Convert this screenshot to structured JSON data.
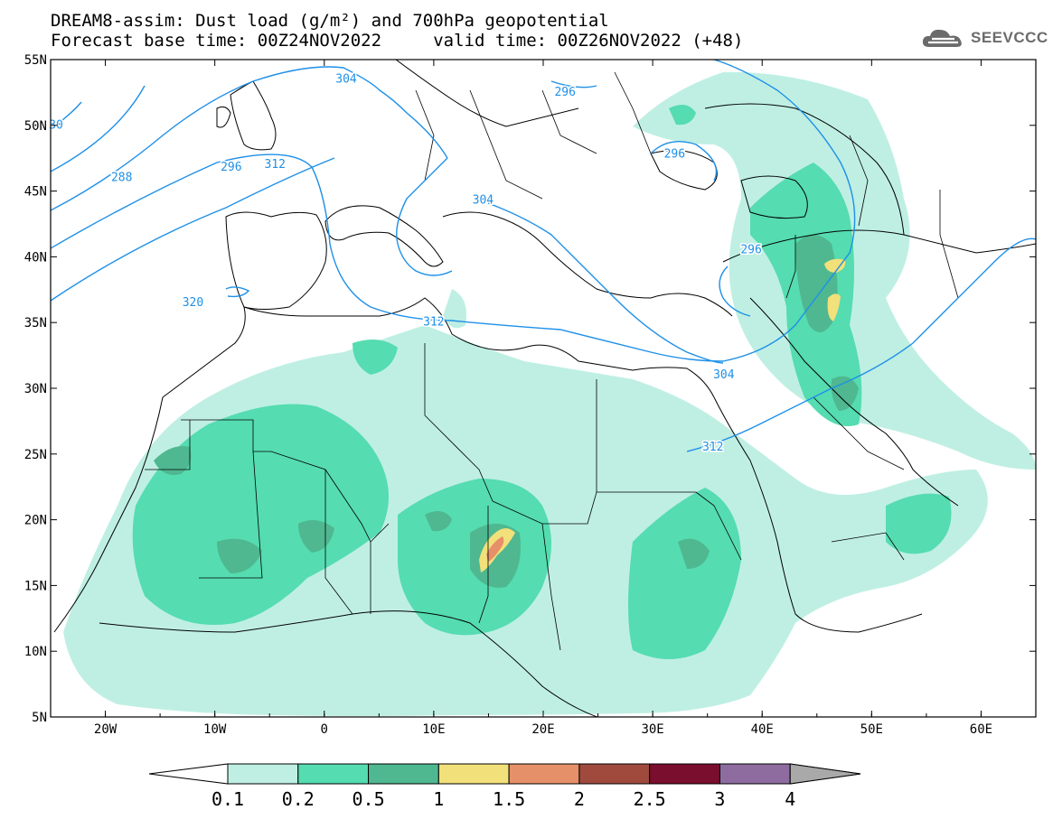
{
  "title": {
    "line1": "DREAM8-assim: Dust load (g/m²) and 700hPa geopotential",
    "line2": "Forecast base time: 00Z24NOV2022     valid time: 00Z26NOV2022 (+48)"
  },
  "logo": {
    "text": "SEEVCCC",
    "icon": "cloud-icon"
  },
  "axes": {
    "lon_ticks": [
      "20W",
      "10W",
      "0",
      "10E",
      "20E",
      "30E",
      "40E",
      "50E",
      "60E"
    ],
    "lat_ticks": [
      "55N",
      "50N",
      "45N",
      "40N",
      "35N",
      "30N",
      "25N",
      "20N",
      "15N",
      "10N",
      "5N"
    ]
  },
  "map": {
    "lon_range": [
      -25,
      65
    ],
    "lat_range": [
      5,
      55
    ],
    "projection": "cylindrical"
  },
  "contour_labels": [
    {
      "text": "304",
      "lon": 2,
      "lat": 53.5
    },
    {
      "text": "296",
      "lon": 22,
      "lat": 52.5
    },
    {
      "text": "296",
      "lon": 32,
      "lat": 47.8
    },
    {
      "text": "296",
      "lon": -8.5,
      "lat": 46.8
    },
    {
      "text": "288",
      "lon": -18.5,
      "lat": 46
    },
    {
      "text": "312",
      "lon": -4.5,
      "lat": 47
    },
    {
      "text": "304",
      "lon": 14.5,
      "lat": 44.3
    },
    {
      "text": "296",
      "lon": 39,
      "lat": 40.5
    },
    {
      "text": "320",
      "lon": -12,
      "lat": 36.5
    },
    {
      "text": "312",
      "lon": 10,
      "lat": 35
    },
    {
      "text": "304",
      "lon": 36.5,
      "lat": 31
    },
    {
      "text": "312",
      "lon": 35.5,
      "lat": 25.5
    },
    {
      "text": "30",
      "lon": -24.5,
      "lat": 50
    }
  ],
  "colorbar": {
    "labels": [
      "0.1",
      "0.2",
      "0.5",
      "1",
      "1.5",
      "2",
      "2.5",
      "3",
      "4"
    ],
    "colors": [
      "#bfefe3",
      "#55dcb0",
      "#4fb890",
      "#f2e07a",
      "#e6906a",
      "#a04a3e",
      "#7a0e2e",
      "#8e6ca0",
      "#a9a9a9"
    ],
    "low_end_color": "#ffffff"
  },
  "colors": {
    "contour": "#1e90e8",
    "coast": "#000000"
  }
}
